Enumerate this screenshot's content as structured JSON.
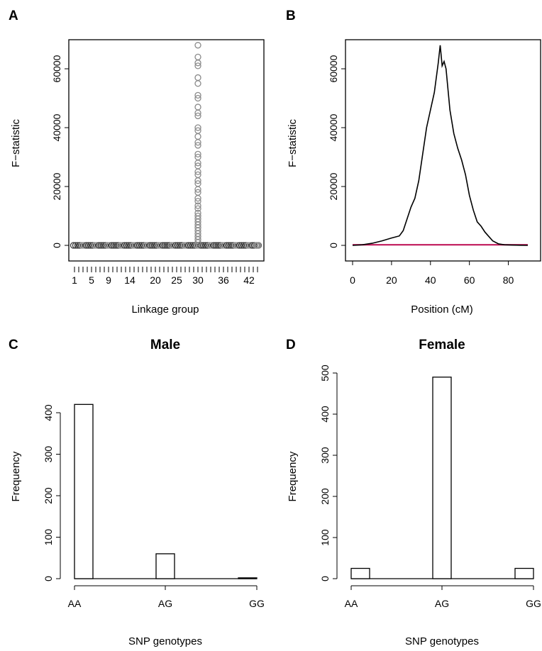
{
  "colors": {
    "panelA_points": "#8a8a8a",
    "panelA_points_dark": "#3a3a3a",
    "panelB_line": "#000000",
    "panelB_threshold": "#c0185a",
    "bars_fill": "#ffffff",
    "bars_stroke": "#000000"
  },
  "chart_data": [
    {
      "type": "scatter",
      "panel": "A",
      "title": "",
      "xlabel": "Linkage group",
      "ylabel": "F−statistic",
      "ylim": [
        0,
        70000
      ],
      "yticks": [
        "0",
        "20000",
        "40000",
        "60000"
      ],
      "xticks": [
        "1",
        "5",
        "9",
        "14",
        "20",
        "25",
        "30",
        "36",
        "42"
      ],
      "linkage_groups": 44,
      "peak_group": 30,
      "peak_values": [
        68000,
        64000,
        62000,
        61000,
        57000,
        55000,
        51000,
        50000,
        47000,
        45000,
        44000,
        40000,
        39000,
        37000,
        35000,
        34000,
        31000,
        30000,
        28000,
        27000,
        25000,
        24000,
        22000,
        21000,
        19000,
        18000,
        16000,
        15000,
        13500,
        12500,
        11000,
        10000,
        9000,
        8000,
        7000,
        6000,
        5000,
        4000,
        3000,
        2000,
        1000
      ],
      "baseline_value": 0
    },
    {
      "type": "line",
      "panel": "B",
      "title": "",
      "xlabel": "Position (cM)",
      "ylabel": "F−statistic",
      "xlim": [
        0,
        90
      ],
      "ylim": [
        0,
        70000
      ],
      "xticks": [
        "0",
        "20",
        "40",
        "60",
        "80"
      ],
      "yticks": [
        "0",
        "20000",
        "40000",
        "60000"
      ],
      "series": [
        {
          "x": [
            0,
            5,
            10,
            15,
            20,
            24,
            26,
            28,
            30,
            32,
            34,
            36,
            38,
            40,
            42,
            44,
            45,
            46,
            47,
            48,
            50,
            52,
            54,
            56,
            58,
            60,
            62,
            64,
            66,
            68,
            70,
            72,
            75,
            78,
            82,
            86,
            90
          ],
          "y": [
            0,
            200,
            700,
            1500,
            2500,
            3200,
            5000,
            9000,
            13000,
            16000,
            22000,
            31000,
            40000,
            46000,
            52000,
            62000,
            68000,
            61000,
            62500,
            60000,
            46000,
            38000,
            33000,
            29000,
            24000,
            17000,
            12000,
            8000,
            6500,
            4500,
            3000,
            1500,
            500,
            200,
            100,
            50,
            0
          ]
        },
        {
          "x": [
            0,
            90
          ],
          "y": [
            200,
            200
          ]
        }
      ]
    },
    {
      "type": "bar",
      "panel": "C",
      "title": "Male",
      "xlabel": "SNP genotypes",
      "ylabel": "Frequency",
      "ylim": [
        0,
        420
      ],
      "yticks": [
        "0",
        "100",
        "200",
        "300",
        "400"
      ],
      "categories": [
        "AA",
        "AG",
        "GG"
      ],
      "values": [
        420,
        60,
        2
      ]
    },
    {
      "type": "bar",
      "panel": "D",
      "title": "Female",
      "xlabel": "SNP genotypes",
      "ylabel": "Frequency",
      "ylim": [
        0,
        500
      ],
      "yticks": [
        "0",
        "100",
        "200",
        "300",
        "400",
        "500"
      ],
      "categories": [
        "AA",
        "AG",
        "GG"
      ],
      "values": [
        25,
        490,
        25
      ]
    }
  ],
  "panels": {
    "A": {
      "letter": "A"
    },
    "B": {
      "letter": "B"
    },
    "C": {
      "letter": "C"
    },
    "D": {
      "letter": "D"
    }
  }
}
